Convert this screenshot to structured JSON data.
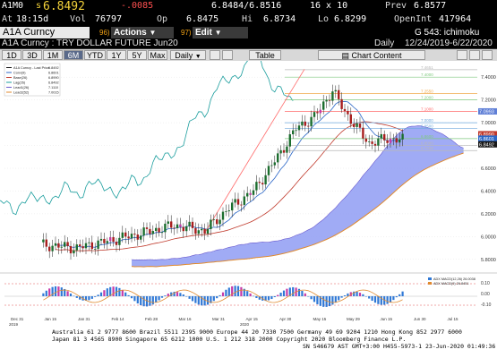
{
  "quote": {
    "ticker": "A1M0",
    "last_prefix": "s",
    "last": "6.8492",
    "change": "-.0085",
    "bid_ask": "6.8484/6.8516",
    "size": "16 x 10",
    "prev_label": "Prev",
    "prev": "6.8577",
    "time_label": "At",
    "time": "18:15d",
    "vol_label": "Vol",
    "vol": "76797",
    "open_label": "Op",
    "open": "6.8475",
    "hi_label": "Hi",
    "hi": "6.8734",
    "lo_label": "Lo",
    "lo": "6.8299",
    "oi_label": "OpenInt",
    "oi": "417964"
  },
  "command_bar": {
    "security": "A1A Curncy",
    "code_96": "96)",
    "actions": "Actions",
    "code_97": "97)",
    "edit": "Edit",
    "page": "G 543: ichimoku"
  },
  "title_bar": {
    "name": "A1A Curncy : TRY DOLLAR FUTURE Jun20",
    "period": "Daily",
    "range": "12/24/2019-6/22/2020"
  },
  "tabs": {
    "ranges": [
      "1D",
      "3D",
      "1M",
      "6M",
      "YTD",
      "1Y",
      "5Y",
      "Max"
    ],
    "selected_range": "6M",
    "frequency": "Daily",
    "table": "Table",
    "chart_content": "Chart Content"
  },
  "legend": {
    "items": [
      {
        "label": "A1A Curncy - Last Price",
        "value": "6.8492",
        "color": "#1a1a1a"
      },
      {
        "label": "Conv(9)",
        "value": "6.8601",
        "color": "#2b67c7"
      },
      {
        "label": "Base(26)",
        "value": "6.8990",
        "color": "#c0392b"
      },
      {
        "label": "Lag(26)",
        "value": "6.8492",
        "color": "#1a9d9d"
      },
      {
        "label": "Lead1(26)",
        "value": "7.1110",
        "color": "#6a5acd"
      },
      {
        "label": "Lead2(52)",
        "value": "7.0015",
        "color": "#e08a2e"
      }
    ]
  },
  "fib_labels": [
    "7.4651",
    "7.4000",
    "7.2550",
    "7.2000",
    "7.1000",
    "7.0000",
    "6.9500",
    "6.8600",
    "6.8000",
    "6.7554"
  ],
  "y_axis": [
    "7.4000",
    "7.2000",
    "7.0000",
    "6.8000",
    "6.6000",
    "6.4000",
    "6.2000",
    "6.0000",
    "5.8000"
  ],
  "price_tags": [
    {
      "value": "7.0993",
      "color": "#5f7fd6"
    },
    {
      "value": "6.8990",
      "color": "#c0392b"
    },
    {
      "value": "6.8601",
      "color": "#2b67c7"
    },
    {
      "value": "6.8492",
      "color": "#1a1a1a"
    }
  ],
  "macd_legend": [
    "ADX MACD(12,26) 26.0038",
    "ADX MACD(9) 26.8451"
  ],
  "macd_axis": [
    "0.10",
    "0.00",
    "-0.10"
  ],
  "x_axis": [
    "Dec 31",
    "Jan 15",
    "Jan 31",
    "Feb 14",
    "Feb 28",
    "Mar 16",
    "Mar 31",
    "Apr 15",
    "Apr 30",
    "May 15",
    "May 29",
    "Jun 15",
    "Jun 30",
    "Jul 15"
  ],
  "x_years": [
    "2019",
    "2020"
  ],
  "footer": {
    "line1": "Australia 61 2 9777 8600 Brazil 5511 2395 9000 Europe 44 20 7330 7500 Germany 49 69 9204 1210 Hong Kong 852 2977 6000",
    "line2": "Japan 81 3 4565 8900          Singapore 65 6212 1000           U.S. 1 212 318 2000       Copyright 2020 Bloomberg Finance L.P.",
    "line3": "SN 546679 AST  GMT+3:00 H455-5973-1 23-Jun-2020 01:49:36"
  },
  "colors": {
    "accent_orange": "#f2a214",
    "cloud_fill": "#8f9cf3",
    "negative_red": "#ff5050",
    "highlight_yellow": "#f3d23a"
  }
}
